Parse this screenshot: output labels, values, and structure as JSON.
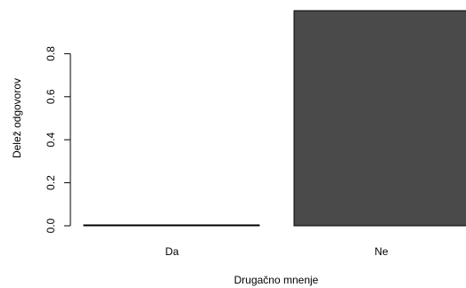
{
  "chart_data": {
    "type": "bar",
    "categories": [
      "Da",
      "Ne"
    ],
    "values": [
      0.0,
      1.0
    ],
    "xlabel": "Drugačno mnenje",
    "ylabel": "Delež odgovorov",
    "yticks": [
      "0.0",
      "0.2",
      "0.4",
      "0.6",
      "0.8"
    ],
    "ylim": [
      0,
      1.0
    ],
    "bar_color": "#4a4a4a",
    "grid": false,
    "legend": "none"
  }
}
